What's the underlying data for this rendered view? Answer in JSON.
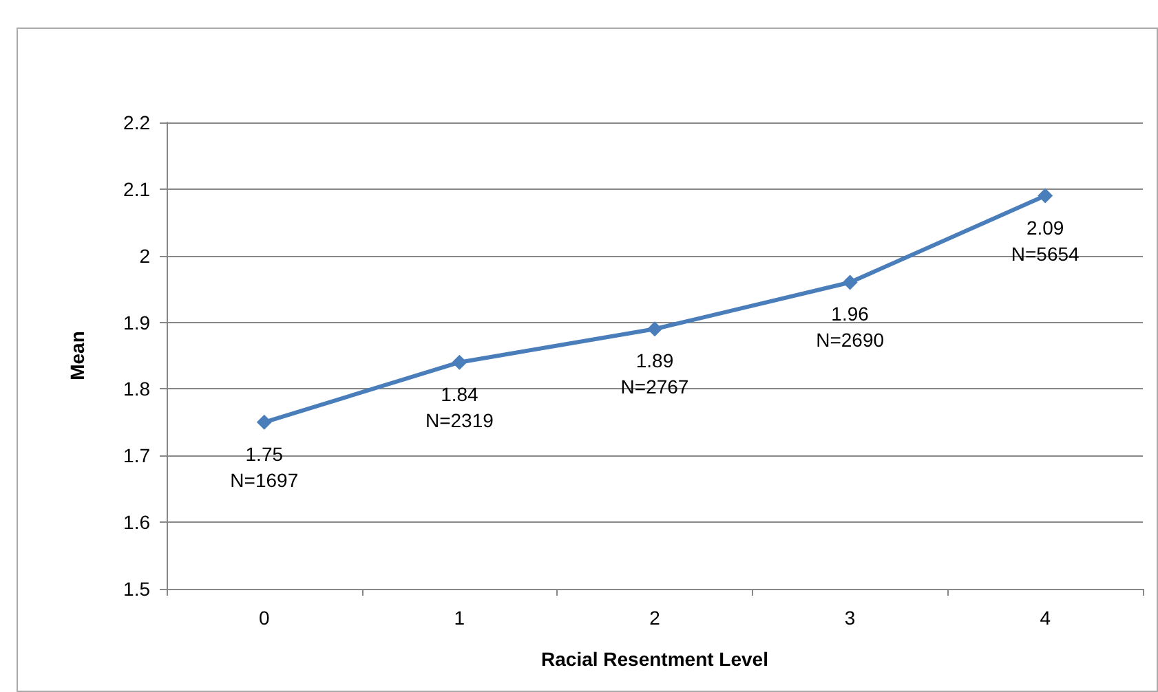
{
  "chart_data": {
    "type": "line",
    "xlabel": "Racial Resentment Level",
    "ylabel": "Mean",
    "categories": [
      "0",
      "1",
      "2",
      "3",
      "4"
    ],
    "series": [
      {
        "color": "#4a7ebb",
        "values": [
          1.75,
          1.84,
          1.89,
          1.96,
          2.09
        ],
        "value_labels": [
          "1.75\nN=1697",
          "1.84\nN=2319",
          "1.89\nN=2767",
          "1.96\nN=2690",
          "2.09\nN=5654"
        ]
      }
    ],
    "ylim": [
      1.5,
      2.2
    ],
    "yticks": [
      1.5,
      1.6,
      1.7,
      1.8,
      1.9,
      2,
      2.1,
      2.2
    ],
    "grid": "y",
    "marker": "diamond",
    "line_style": "solid"
  }
}
